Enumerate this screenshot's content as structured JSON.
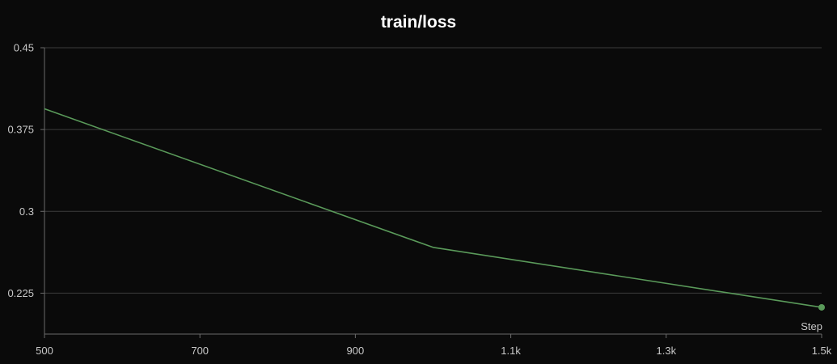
{
  "chart_data": {
    "type": "line",
    "title": "train/loss",
    "xlabel": "Step",
    "ylabel": "",
    "xlim": [
      500,
      1500
    ],
    "ylim": [
      0.1875,
      0.45
    ],
    "x_ticks": [
      {
        "value": 500,
        "label": "500"
      },
      {
        "value": 700,
        "label": "700"
      },
      {
        "value": 900,
        "label": "900"
      },
      {
        "value": 1100,
        "label": "1.1k"
      },
      {
        "value": 1300,
        "label": "1.3k"
      },
      {
        "value": 1500,
        "label": "1.5k"
      }
    ],
    "y_ticks": [
      {
        "value": 0.45,
        "label": "0.45"
      },
      {
        "value": 0.375,
        "label": "0.375"
      },
      {
        "value": 0.3,
        "label": "0.3"
      },
      {
        "value": 0.225,
        "label": "0.225"
      }
    ],
    "grid": true,
    "colors": {
      "background": "#0a0a0a",
      "series": "#5a9a5a",
      "grid": "#3c3c3c",
      "axis": "#6a6a6a",
      "text": "#c8c8c8",
      "title": "#ffffff"
    },
    "series": [
      {
        "x": [
          500,
          1000,
          1500
        ],
        "y": [
          0.394,
          0.267,
          0.212
        ]
      }
    ]
  }
}
